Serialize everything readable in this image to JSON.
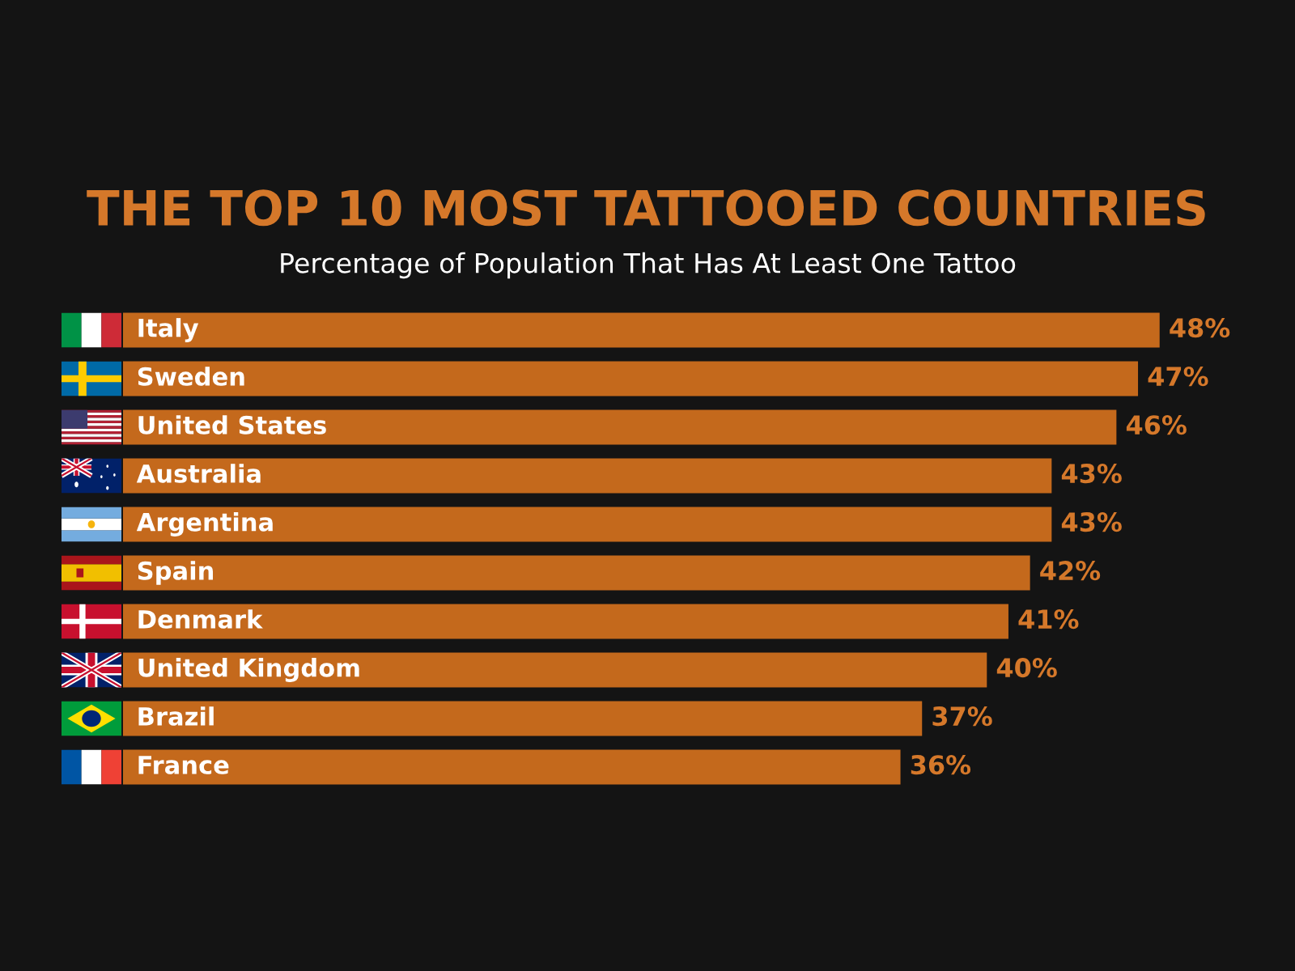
{
  "chart_data": {
    "type": "bar",
    "orientation": "horizontal",
    "title": "THE TOP 10 MOST TATTOOED COUNTRIES",
    "subtitle": "Percentage of Population That Has At Least One Tattoo",
    "categories": [
      "Italy",
      "Sweden",
      "United States",
      "Australia",
      "Argentina",
      "Spain",
      "Denmark",
      "United Kingdom",
      "Brazil",
      "France"
    ],
    "values": [
      48,
      47,
      46,
      43,
      43,
      42,
      41,
      40,
      37,
      36
    ],
    "value_labels": [
      "48%",
      "47%",
      "46%",
      "43%",
      "43%",
      "42%",
      "41%",
      "40%",
      "37%",
      "36%"
    ],
    "color": "#c4691c",
    "tick_labels": "y"
  }
}
